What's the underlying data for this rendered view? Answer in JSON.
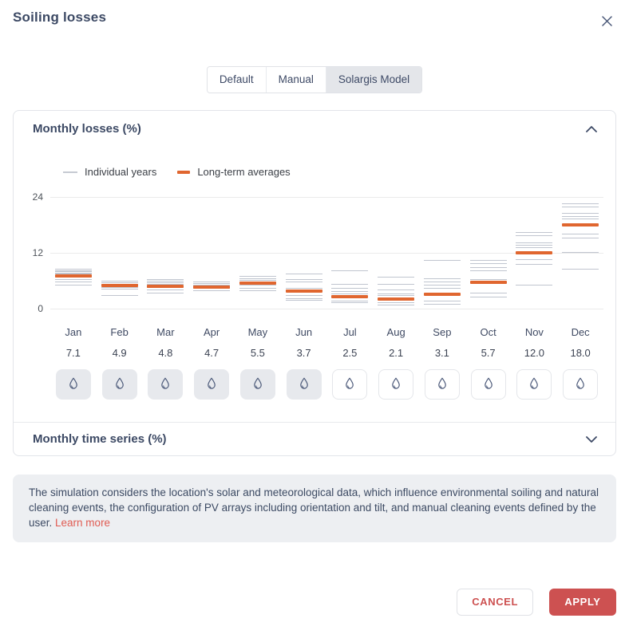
{
  "dialog": {
    "title": "Soiling losses"
  },
  "tabs": [
    {
      "label": "Default",
      "selected": false
    },
    {
      "label": "Manual",
      "selected": false
    },
    {
      "label": "Solargis Model",
      "selected": true
    }
  ],
  "monthly_losses_section": {
    "title": "Monthly losses (%)"
  },
  "legend": [
    {
      "label": "Individual years"
    },
    {
      "label": "Long-term averages"
    }
  ],
  "chart_data": {
    "type": "custom-monthly-lines",
    "title": "Monthly losses (%)",
    "categories": [
      "Jan",
      "Feb",
      "Mar",
      "Apr",
      "May",
      "Jun",
      "Jul",
      "Aug",
      "Sep",
      "Oct",
      "Nov",
      "Dec"
    ],
    "series": [
      {
        "name": "Individual years",
        "style": "thin-gray-line-per-year",
        "values": [
          [
            8.6,
            8.3,
            8.0,
            7.8,
            7.5,
            6.9,
            6.4,
            5.9,
            5.2
          ],
          [
            6.0,
            5.7,
            5.4,
            5.2,
            4.7,
            4.3,
            3.0
          ],
          [
            6.4,
            6.0,
            5.7,
            5.4,
            4.6,
            4.1,
            3.4
          ],
          [
            5.8,
            5.5,
            5.2,
            5.0,
            4.4,
            4.0
          ],
          [
            7.0,
            6.6,
            6.2,
            5.9,
            5.1,
            4.5,
            4.0
          ],
          [
            7.5,
            6.3,
            5.8,
            4.5,
            4.1,
            3.0,
            2.3,
            1.9
          ],
          [
            8.3,
            5.4,
            4.4,
            3.7,
            3.2,
            1.8,
            1.3
          ],
          [
            6.8,
            5.3,
            4.1,
            3.3,
            2.9,
            1.4,
            0.9
          ],
          [
            10.5,
            6.6,
            5.9,
            5.1,
            4.4,
            1.7,
            1.0
          ],
          [
            10.4,
            9.7,
            9.0,
            8.3,
            6.4,
            3.4,
            2.6
          ],
          [
            16.5,
            15.7,
            14.3,
            13.7,
            13.2,
            10.7,
            9.6,
            5.1
          ],
          [
            22.6,
            21.9,
            20.5,
            19.9,
            19.4,
            16.2,
            15.3,
            12.2,
            8.6
          ]
        ]
      },
      {
        "name": "Long-term averages",
        "style": "thick-orange-line",
        "values": [
          7.1,
          4.9,
          4.8,
          4.7,
          5.5,
          3.7,
          2.5,
          2.1,
          3.1,
          5.7,
          12.0,
          18.0
        ]
      }
    ],
    "yticks": [
      0,
      12,
      24
    ],
    "ylim": [
      0,
      24
    ],
    "grid": "horizontal",
    "legend_position": "top-left"
  },
  "months": {
    "labels": [
      "Jan",
      "Feb",
      "Mar",
      "Apr",
      "May",
      "Jun",
      "Jul",
      "Aug",
      "Sep",
      "Oct",
      "Nov",
      "Dec"
    ],
    "values": [
      "7.1",
      "4.9",
      "4.8",
      "4.7",
      "5.5",
      "3.7",
      "2.5",
      "2.1",
      "3.1",
      "5.7",
      "12.0",
      "18.0"
    ],
    "cleaning_selected": [
      true,
      true,
      true,
      true,
      true,
      true,
      false,
      false,
      false,
      false,
      false,
      false
    ]
  },
  "time_series_section": {
    "title": "Monthly time series (%)"
  },
  "info": {
    "text": "The simulation considers the location's solar and meteorological data, which influence environmental soiling and natural cleaning events, the configuration of PV arrays including orientation and tilt, and manual cleaning events defined by the user. ",
    "link_label": "Learn more"
  },
  "footer": {
    "cancel_label": "CANCEL",
    "apply_label": "APPLY"
  },
  "colors": {
    "heading": "#3c4964",
    "individual_years_line": "#8c96a8",
    "long_term_average_line": "#e0662f",
    "danger_red": "#cd5151",
    "link_red": "#e05b52",
    "selected_tab_bg": "#e4e6ea",
    "info_box_bg": "#edeff2"
  }
}
